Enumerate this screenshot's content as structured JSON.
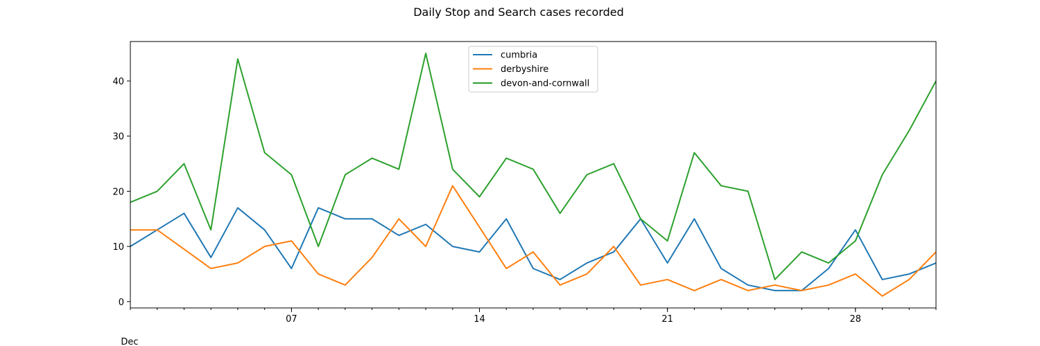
{
  "chart_data": {
    "type": "line",
    "title": "Daily Stop and Search cases recorded",
    "xlabel": "",
    "ylabel": "",
    "x": [
      "2019-12-01",
      "2019-12-02",
      "2019-12-03",
      "2019-12-04",
      "2019-12-05",
      "2019-12-06",
      "2019-12-07",
      "2019-12-08",
      "2019-12-09",
      "2019-12-10",
      "2019-12-11",
      "2019-12-12",
      "2019-12-13",
      "2019-12-14",
      "2019-12-15",
      "2019-12-16",
      "2019-12-17",
      "2019-12-18",
      "2019-12-19",
      "2019-12-20",
      "2019-12-21",
      "2019-12-22",
      "2019-12-23",
      "2019-12-24",
      "2019-12-25",
      "2019-12-26",
      "2019-12-27",
      "2019-12-28",
      "2019-12-29",
      "2019-12-30",
      "2019-12-31"
    ],
    "xlim": [
      "2019-12-01",
      "2019-12-31"
    ],
    "ylim": [
      -1.15,
      47.15
    ],
    "x_major_ticks": [
      "07",
      "14",
      "21",
      "28"
    ],
    "x_month_label": "Dec",
    "y_ticks": [
      0,
      10,
      20,
      30,
      40
    ],
    "grid": false,
    "legend_position": "top-center",
    "series": [
      {
        "name": "cumbria",
        "color": "#1f77b4",
        "values": [
          10,
          13,
          16,
          8,
          17,
          13,
          6,
          17,
          15,
          15,
          12,
          14,
          10,
          9,
          15,
          6,
          4,
          7,
          9,
          15,
          7,
          15,
          6,
          3,
          2,
          2,
          6,
          13,
          4,
          5,
          7
        ]
      },
      {
        "name": "derbyshire",
        "color": "#ff7f0e",
        "values": [
          13,
          13,
          9.5,
          6,
          7,
          10,
          11,
          5,
          3,
          8,
          15,
          10,
          21,
          13.5,
          6,
          9,
          3,
          5,
          10,
          3,
          4,
          2,
          4,
          2,
          3,
          2,
          3,
          5,
          1,
          4,
          9
        ]
      },
      {
        "name": "devon-and-cornwall",
        "color": "#2ca02c",
        "values": [
          18,
          20,
          25,
          13,
          44,
          27,
          23,
          10,
          23,
          26,
          24,
          45,
          24,
          19,
          26,
          24,
          16,
          23,
          25,
          15,
          11,
          27,
          21,
          20,
          4,
          9,
          7,
          11,
          23,
          31,
          40
        ]
      }
    ]
  }
}
